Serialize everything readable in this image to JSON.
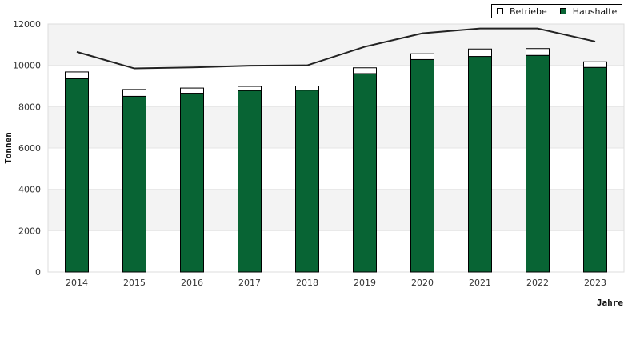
{
  "chart_data": {
    "type": "bar",
    "stacked": true,
    "categories": [
      "2014",
      "2015",
      "2016",
      "2017",
      "2018",
      "2019",
      "2020",
      "2021",
      "2022",
      "2023"
    ],
    "series": [
      {
        "name": "Haushalte",
        "color": "#086434",
        "values": [
          9350,
          8500,
          8650,
          8780,
          8800,
          9600,
          10280,
          10430,
          10480,
          9900
        ]
      },
      {
        "name": "Betriebe",
        "color": "#ffffff",
        "values": [
          330,
          330,
          250,
          200,
          200,
          280,
          280,
          360,
          330,
          270
        ]
      }
    ],
    "line": {
      "color": "#222222",
      "values": [
        10650,
        9850,
        9900,
        9980,
        10000,
        10900,
        11550,
        11780,
        11780,
        11150
      ]
    },
    "xlabel": "Jahre",
    "ylabel": "Tonnen",
    "ylim": [
      0,
      12000
    ],
    "yticks": [
      0,
      2000,
      4000,
      6000,
      8000,
      10000,
      12000
    ],
    "grid": "horizontal-bands",
    "legend_position": "top-right"
  }
}
